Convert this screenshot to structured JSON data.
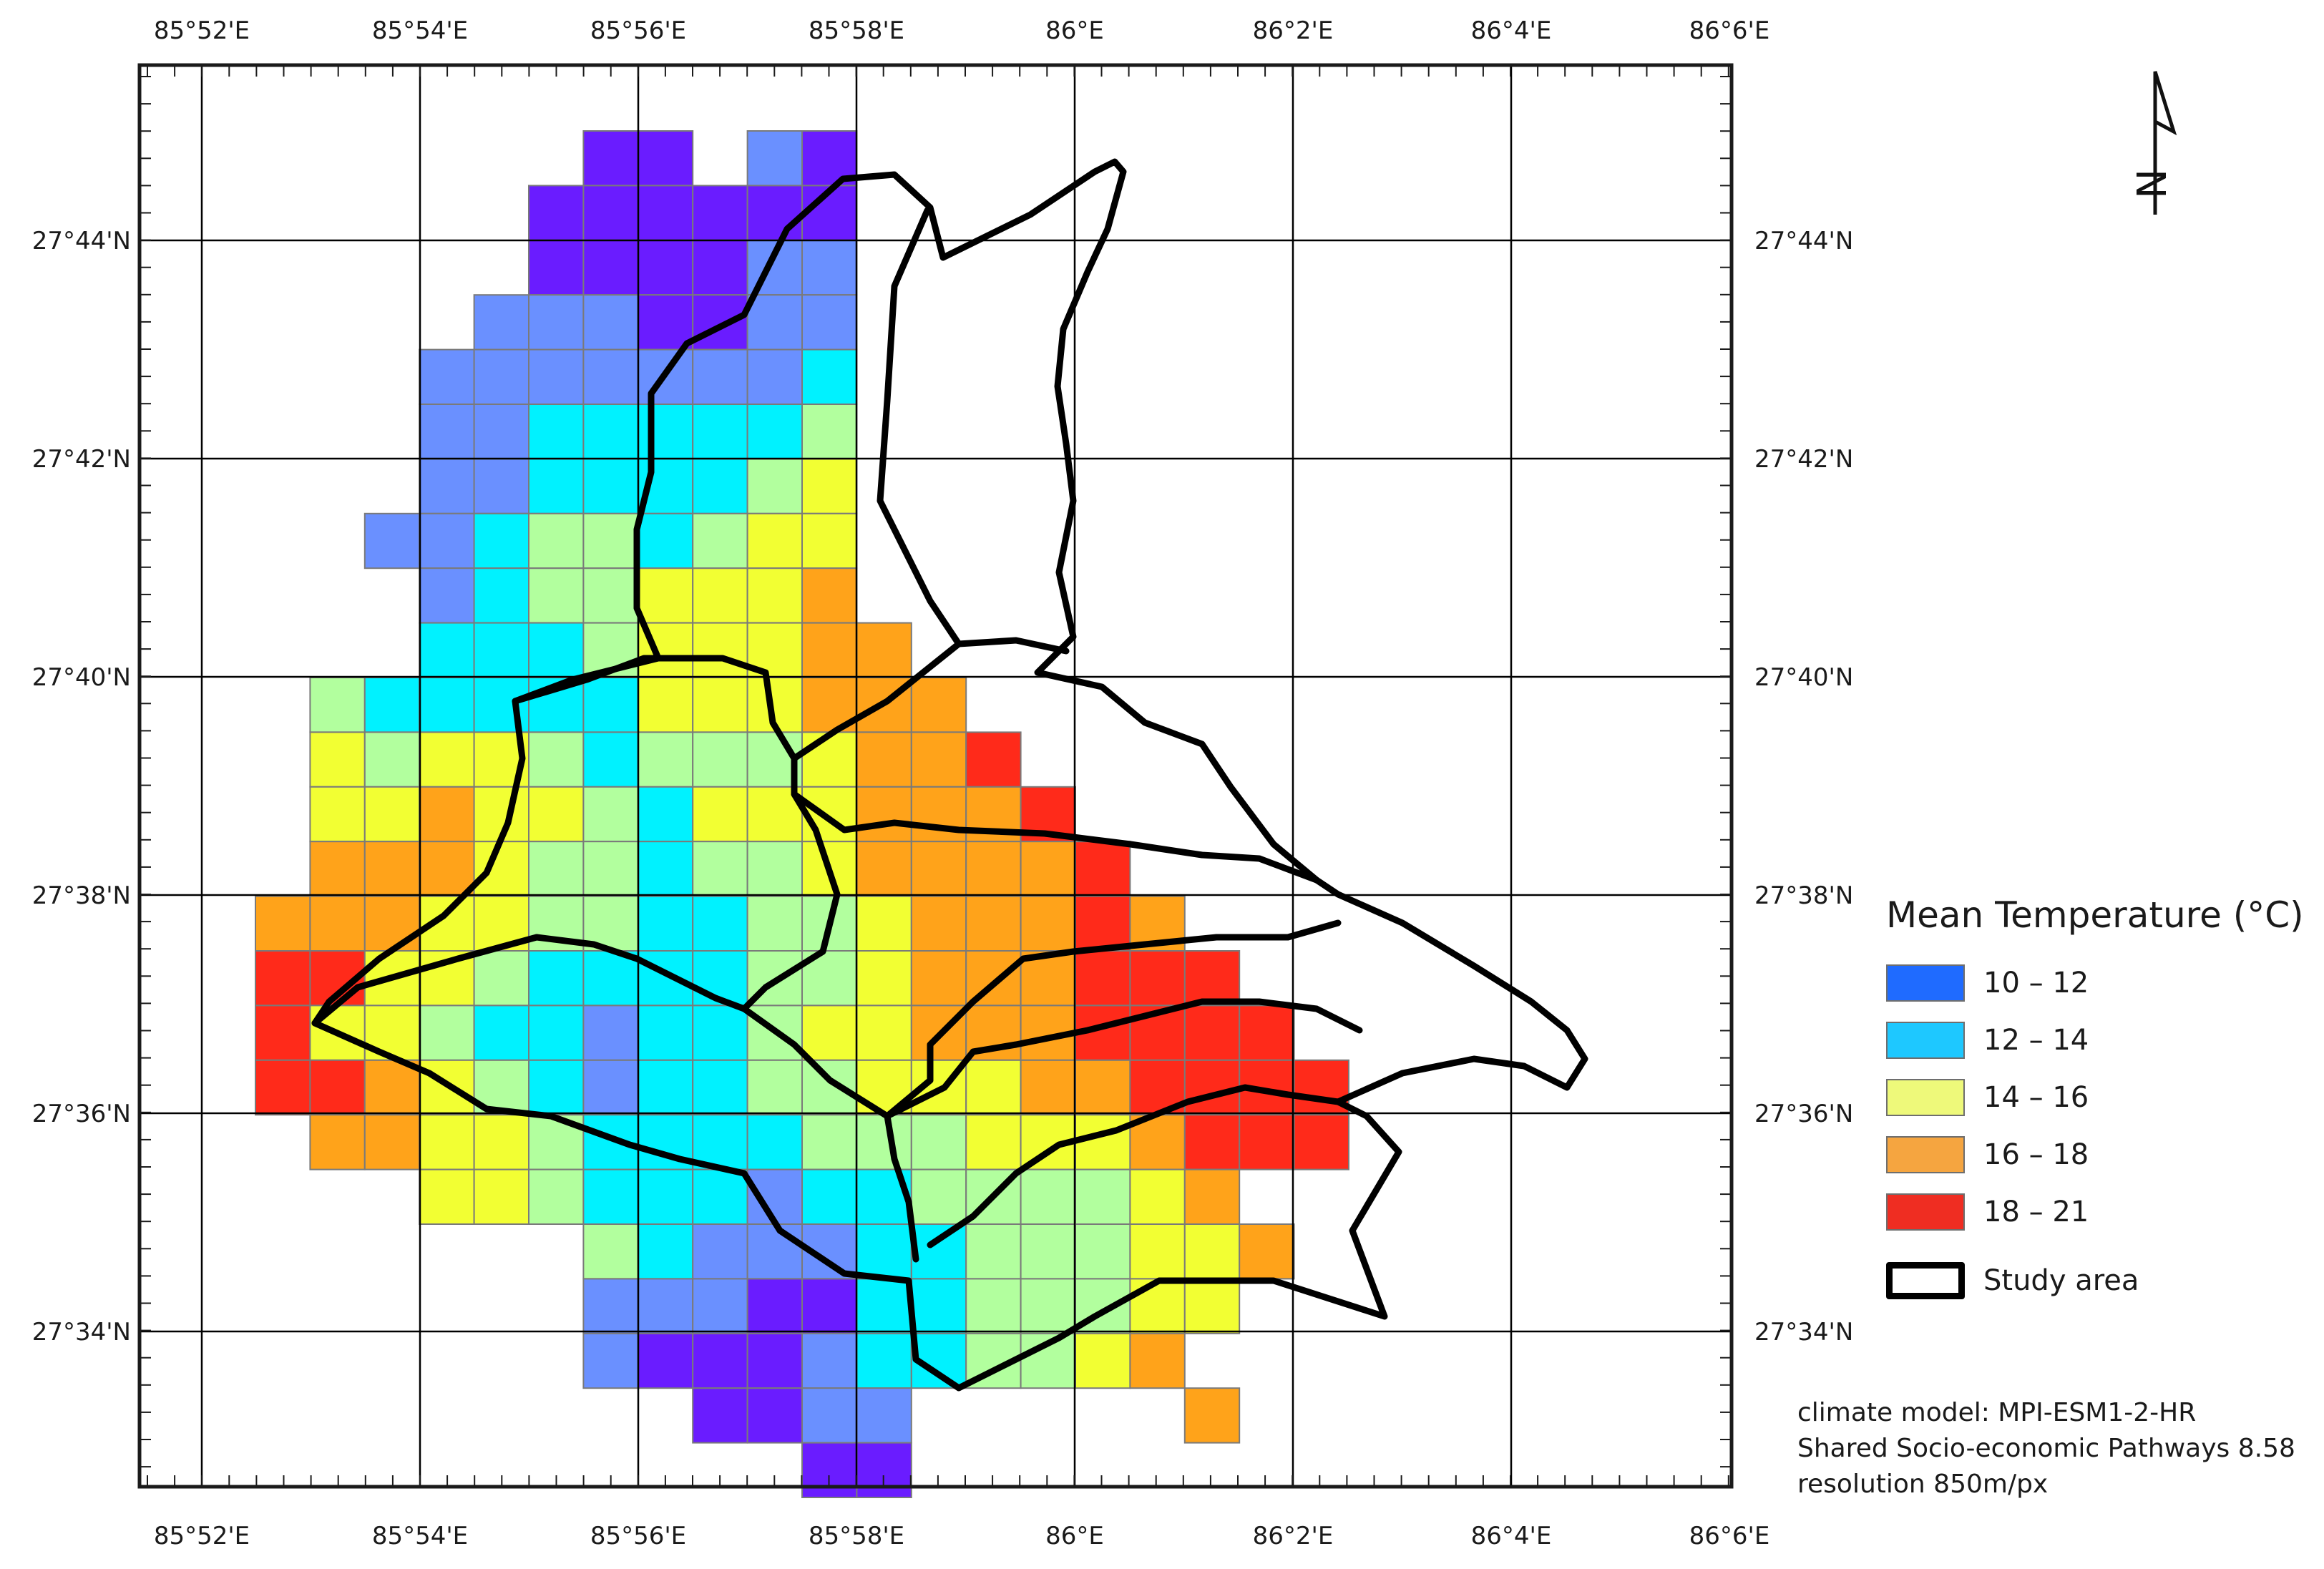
{
  "map": {
    "lon_labels": [
      "85°52'E",
      "85°54'E",
      "85°56'E",
      "85°58'E",
      "86°E",
      "86°2'E",
      "86°4'E",
      "86°6'E"
    ],
    "lat_labels": [
      "27°44'N",
      "27°42'N",
      "27°40'N",
      "27°38'N",
      "27°36'N",
      "27°34'N"
    ],
    "north_arrow_letter": "N",
    "boundary_color": "#000000",
    "grid_line_color": "#000000"
  },
  "legend": {
    "title": "Mean Temperature (°C)",
    "classes": [
      {
        "label": "10 – 12",
        "color": "#1f6bff"
      },
      {
        "label": "12 – 14",
        "color": "#1ec8ff"
      },
      {
        "label": "14 – 16",
        "color": "#eef97a"
      },
      {
        "label": "16 – 18",
        "color": "#f5a540"
      },
      {
        "label": "18 – 21",
        "color": "#ef2d22"
      }
    ],
    "study_area_label": "Study area"
  },
  "notes": {
    "line1": "climate model: MPI-ESM1-2-HR",
    "line2": "Shared Socio-economic Pathways 8.58",
    "line3": "resolution 850m/px"
  },
  "palette": {
    "violet": "#6a1cff",
    "blue": "#6a90ff",
    "cyan": "#00f2ff",
    "light_green": "#b2ff9e",
    "yellow": "#f2ff33",
    "orange": "#ffa31a",
    "red": "#ff2a1a"
  },
  "cells": [
    "......VV.BV.........",
    ".....VVVVVV.........",
    ".....VVVVBB.........",
    "....BBBVVBB.........",
    "...BBBBBBBC.........",
    "...BBCCCCCG.........",
    "...BBCCCCGY.........",
    "..BBCGGCGYY.........",
    "...BCGGYYYO.........",
    "...CCCGYYYOO........",
    ".GCCCCCYYYOOO.......",
    ".YGYYGCGGGYOOR......",
    ".YYOYYGCYYYOOOR.....",
    ".OOOYGGCGGYOOOOR....",
    "OOOYYGGCCGGYOOORO...",
    "RRYYGCCCCGGYOOORRR..",
    "RYYGCCBCCGYYOOORRRR.",
    "RROYGCBCCGGYYYOORRRR",
    ".OOYYGCCCCGGGYYYORRR",
    "...YYGCCCBCCGGGGYO..",
    "......GCBBBCCGGGYYO.",
    "......BBBVVCCGGGYY..",
    "......BVVVBCCGGYO...",
    "........VVBB.....O..",
    "..........VV........"
  ]
}
